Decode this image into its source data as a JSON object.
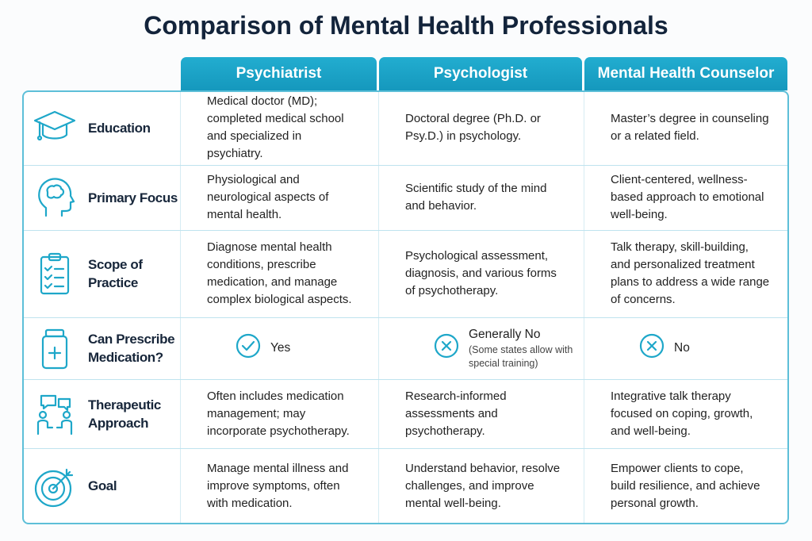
{
  "title": "Comparison of Mental Health Professionals",
  "table": {
    "columns": [
      "Psychiatrist",
      "Psychologist",
      "Mental Health Counselor"
    ],
    "rows": [
      {
        "label": "Education",
        "cells": [
          "Medical doctor (MD); completed medical school and specialized in psychiatry.",
          "Doctoral degree (Ph.D. or Psy.D.) in psychology.",
          "Master’s degree in counseling or a related field."
        ]
      },
      {
        "label": "Primary Focus",
        "cells": [
          "Physiological and neurological aspects of mental health.",
          "Scientific study of the mind and behavior.",
          "Client-centered, wellness-based approach to emotional well-being."
        ]
      },
      {
        "label": "Scope of Practice",
        "cells": [
          "Diagnose mental health conditions, prescribe medication, and manage complex biological aspects.",
          "Psychological assessment, diagnosis, and various forms of psychotherapy.",
          "Talk therapy, skill-building, and personalized treatment plans to address a wide range of concerns."
        ]
      },
      {
        "label": "Can Prescribe Medication?",
        "cells": [
          {
            "answer": "Yes"
          },
          {
            "answer": "Generally No",
            "note": "(Some states allow with special training)"
          },
          {
            "answer": "No"
          }
        ]
      },
      {
        "label": "Therapeutic Approach",
        "cells": [
          "Often includes medication management; may incorporate psychotherapy.",
          "Research-informed assessments and psychotherapy.",
          "Integrative talk therapy focused on coping, growth, and well-being."
        ]
      },
      {
        "label": "Goal",
        "cells": [
          "Manage mental illness and improve symptoms, often with medication.",
          "Understand behavior, resolve challenges, and improve mental well-being.",
          "Empower clients to cope, build resilience, and achieve personal growth."
        ]
      }
    ]
  }
}
